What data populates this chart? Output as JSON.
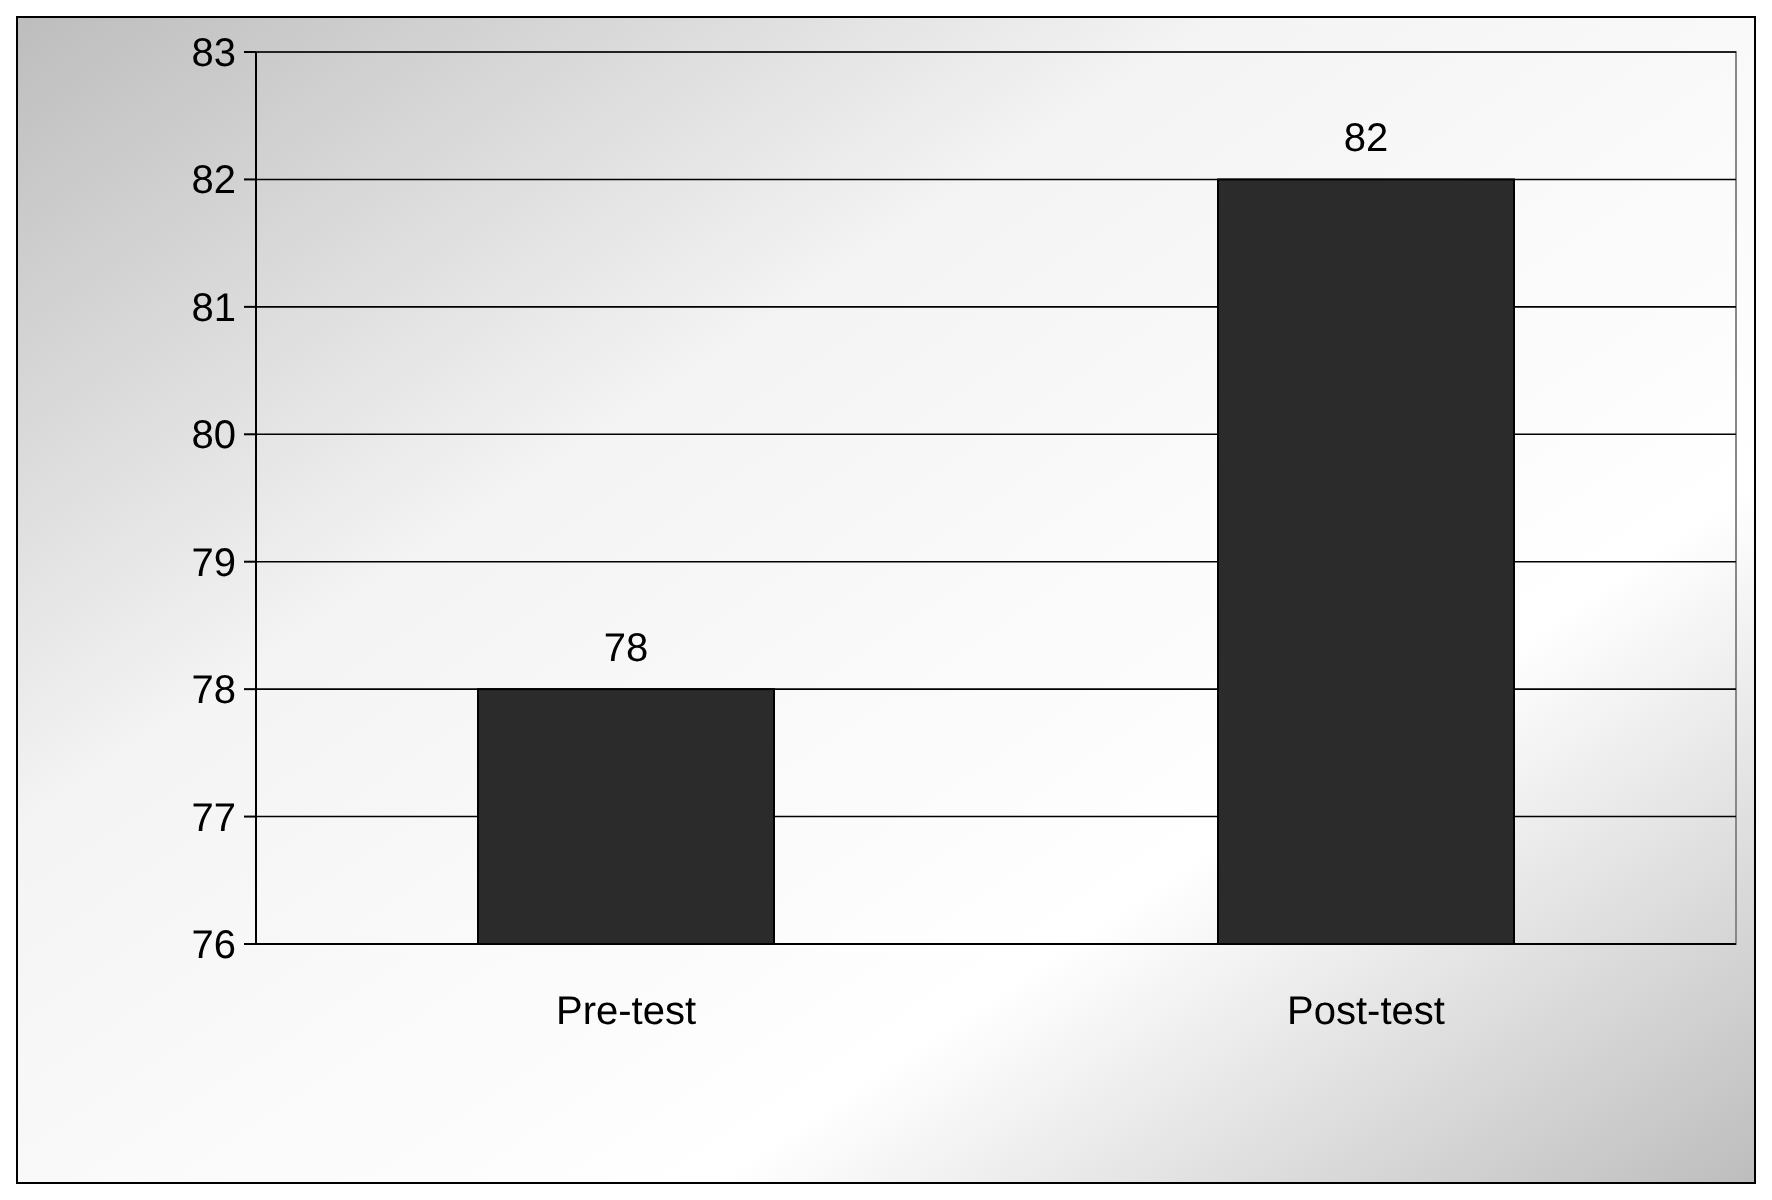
{
  "chart_data": {
    "type": "bar",
    "categories": [
      "Pre-test",
      "Post-test"
    ],
    "values": [
      78,
      82
    ],
    "color": "#2b2b2b",
    "ylim": [
      76,
      83
    ],
    "yticks": [
      76,
      77,
      78,
      79,
      80,
      81,
      82,
      83
    ],
    "grid": "y",
    "data_labels": true
  }
}
